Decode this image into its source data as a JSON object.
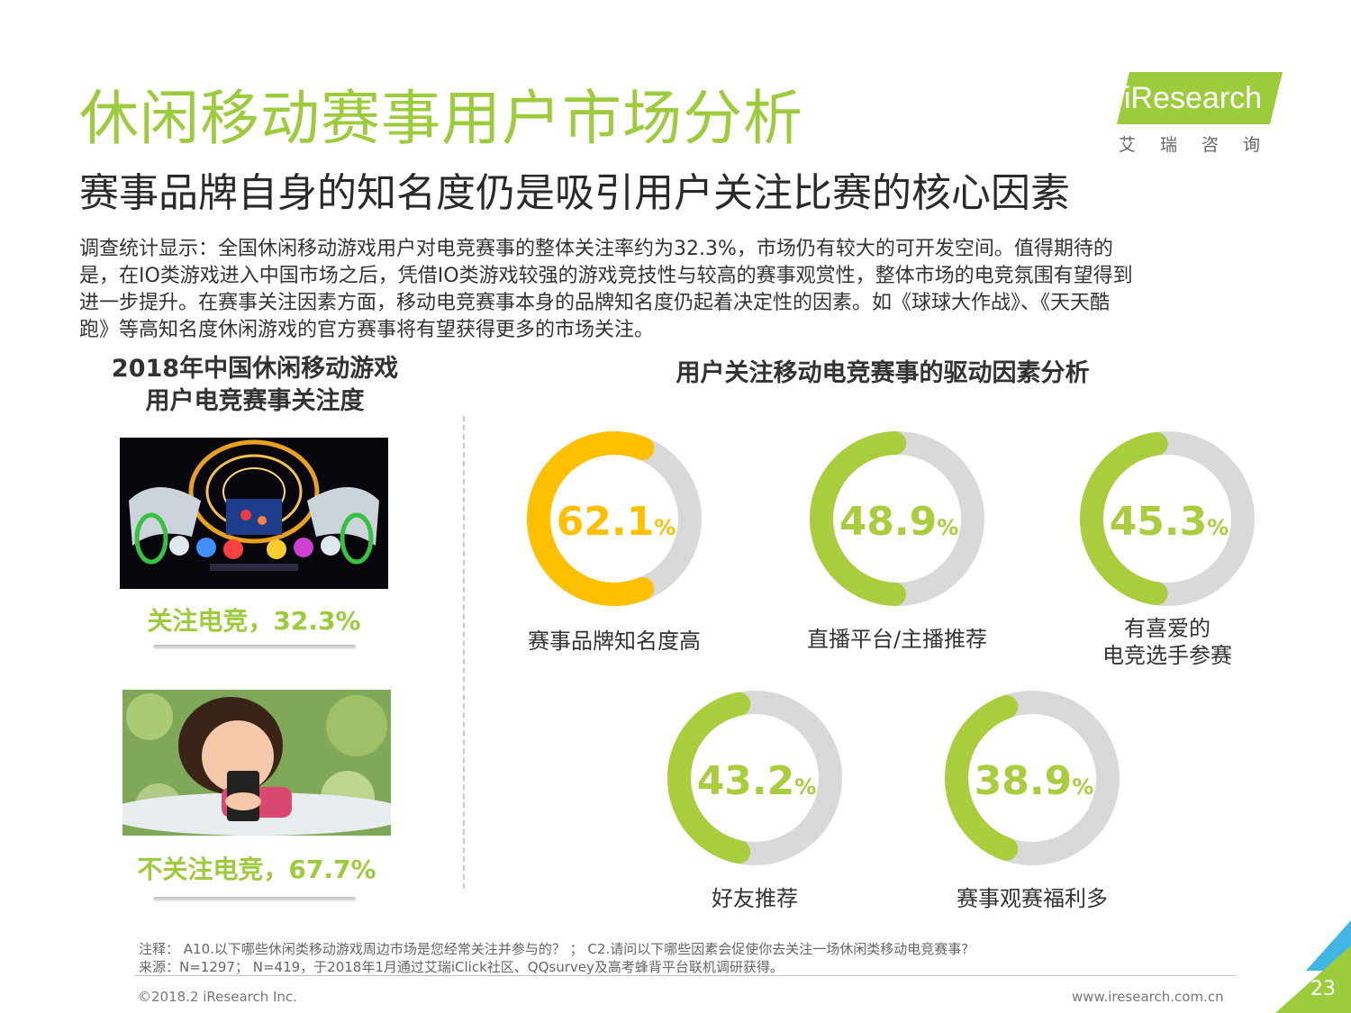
{
  "header": {
    "title": "休闲移动赛事用户市场分析",
    "subtitle": "赛事品牌自身的知名度仍是吸引用户关注比赛的核心因素",
    "body": [
      "调查统计显示：全国休闲移动游戏用户对电竞赛事的整体关注率约为32.3%，市场仍有较大的可开发空间。值得期待的",
      "是，在IO类游戏进入中国市场之后，凭借IO类游戏较强的游戏竞技性与较高的赛事观赏性，整体市场的电竞氛围有望得到",
      "进一步提升。在赛事关注因素方面，移动电竞赛事本身的品牌知名度仍起着决定性的因素。如《球球大作战》、《天天酷",
      "跑》等高知名度休闲游戏的官方赛事将有望获得更多的市场关注。"
    ]
  },
  "logo": {
    "brand": "iResearch",
    "cn": "艾瑞咨询"
  },
  "left_panel": {
    "title_line1": "2018年中国休闲移动游戏",
    "title_line2": "用户电竞赛事关注度",
    "follow_label": "关注电竞，32.3%",
    "not_follow_label": "不关注电竞，67.7%"
  },
  "right_panel": {
    "title": "用户关注移动电竞赛事的驱动因素分析"
  },
  "chart_data": {
    "type": "donut",
    "title": "用户关注移动电竞赛事的驱动因素分析",
    "unit": "%",
    "items": [
      {
        "label": "赛事品牌知名度高",
        "value": 62.1,
        "display": "62.1",
        "color": "#ffc000"
      },
      {
        "label": "直播平台/主播推荐",
        "value": 48.9,
        "display": "48.9",
        "color": "#a9cd3d"
      },
      {
        "label": "有喜爱的电竞选手参赛",
        "label_lines": [
          "有喜爱的",
          "电竞选手参赛"
        ],
        "value": 45.3,
        "display": "45.3",
        "color": "#a9cd3d"
      },
      {
        "label": "好友推荐",
        "value": 43.2,
        "display": "43.2",
        "color": "#a9cd3d"
      },
      {
        "label": "赛事观赛福利多",
        "value": 38.9,
        "display": "38.9",
        "color": "#a9cd3d"
      }
    ],
    "track_color": "#d9d9d9"
  },
  "footer": {
    "note": "注释：  A10.以下哪些休闲类移动游戏周边市场是您经常关注并参与的？  ；  C2.请问以下哪些因素会促使你去关注一场休闲类移动电竞赛事?",
    "source": "来源：N=1297；  N=419，于2018年1月通过艾瑞iClick社区、QQsurvey及高考蜂背平台联机调研获得。",
    "copyright": "©2018.2 iResearch Inc.",
    "website": "www.iresearch.com.cn",
    "page": "23"
  }
}
